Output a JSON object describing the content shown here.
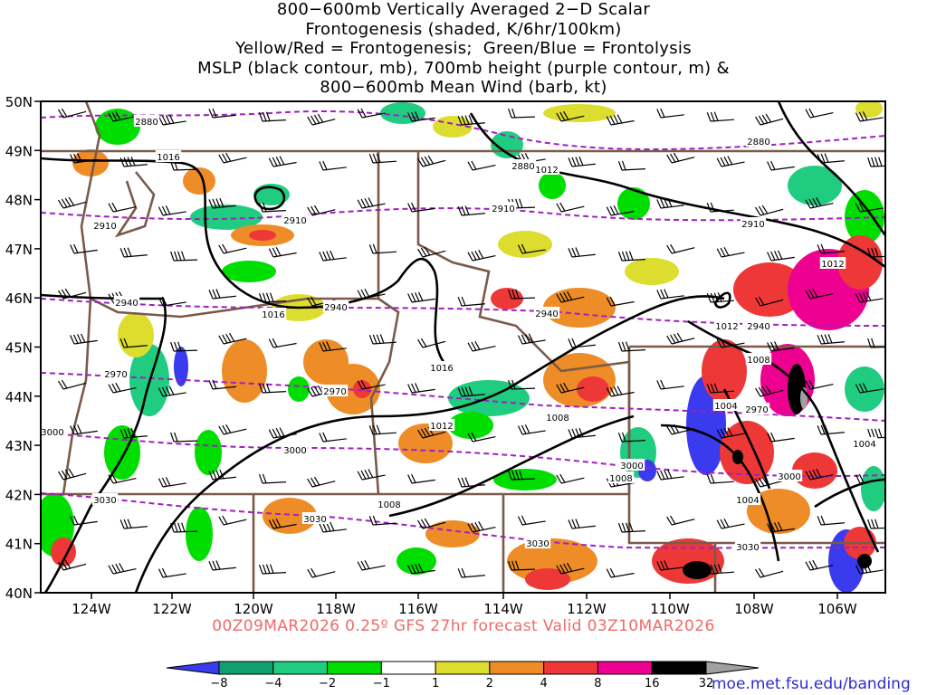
{
  "title_lines": [
    "800−600mb Vertically Averaged 2−D Scalar",
    "Frontogenesis (shaded, K/6hr/100km)",
    "Yellow/Red = Frontogenesis;  Green/Blue = Frontolysis",
    "MSLP (black contour, mb), 700mb height (purple contour, m) &",
    "800−600mb Mean Wind (barb, kt)"
  ],
  "lat_labels": [
    "50N",
    "49N",
    "48N",
    "47N",
    "46N",
    "45N",
    "44N",
    "43N",
    "42N",
    "41N",
    "40N"
  ],
  "lon_labels": [
    "124W",
    "122W",
    "120W",
    "118W",
    "116W",
    "114W",
    "112W",
    "110W",
    "108W",
    "106W"
  ],
  "mslp_labels": [
    "1016",
    "1012",
    "1016",
    "1016",
    "1012",
    "1012",
    "1008",
    "1008",
    "1004",
    "1008",
    "1004",
    "1004",
    "1008",
    "1012"
  ],
  "height_labels": [
    "2880",
    "2880",
    "2880",
    "2910",
    "2910",
    "2910",
    "2910",
    "2940",
    "2940",
    "2940",
    "2940",
    "2970",
    "2970",
    "2970",
    "3000",
    "3000",
    "3000",
    "3000",
    "3030",
    "3030",
    "3030",
    "3030"
  ],
  "footer": "00Z09MAR2026 0.25º GFS 27hr forecast Valid 03Z10MAR2026",
  "colorbar": {
    "tick_labels": [
      "−8",
      "−4",
      "−2",
      "−1",
      "1",
      "2",
      "4",
      "8",
      "16",
      "32"
    ],
    "colors": [
      "#3a3aee",
      "#10a070",
      "#20cc80",
      "#00dd00",
      "#ffffff",
      "#dddd30",
      "#ee8c28",
      "#ee3838",
      "#ee0090",
      "#000000",
      "#a0a0a0"
    ]
  },
  "shading_colors": {
    "frontolysis_weak": "#00dd00",
    "frontolysis_mod": "#20cc80",
    "frontolysis_strong": "#3a3aee",
    "frontogenesis_weak": "#dddd30",
    "frontogenesis_mod": "#ee8c28",
    "frontogenesis_strong": "#ee3838",
    "frontogenesis_vstrong": "#ee0090",
    "frontogenesis_extreme": "#000000"
  },
  "credit": "moe.met.fsu.edu/banding"
}
